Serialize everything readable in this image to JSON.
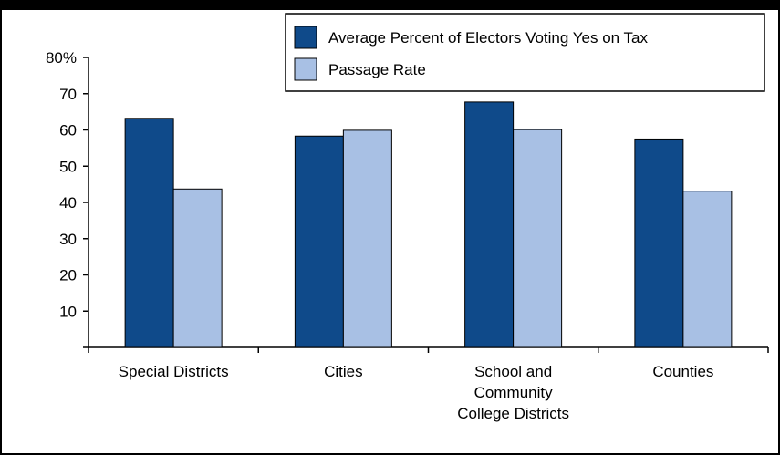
{
  "chart_data": {
    "type": "bar",
    "categories": [
      [
        "Special Districts"
      ],
      [
        "Cities"
      ],
      [
        "School and",
        "Community",
        "College Districts"
      ],
      [
        "Counties"
      ]
    ],
    "series": [
      {
        "name": "Average Percent of Electors Voting Yes on Tax",
        "values": [
          63.2,
          58.3,
          67.7,
          57.5
        ],
        "color": "#0f4a8a"
      },
      {
        "name": "Passage Rate",
        "values": [
          43.7,
          59.9,
          60.1,
          43.1
        ],
        "color": "#a8c0e4"
      }
    ],
    "y_ticks": [
      "",
      "10",
      "20",
      "30",
      "40",
      "50",
      "60",
      "70",
      "80%"
    ],
    "ylim": [
      0,
      80
    ],
    "grid": false,
    "legend_position": "top-right",
    "title": "",
    "xlabel": "",
    "ylabel": ""
  }
}
